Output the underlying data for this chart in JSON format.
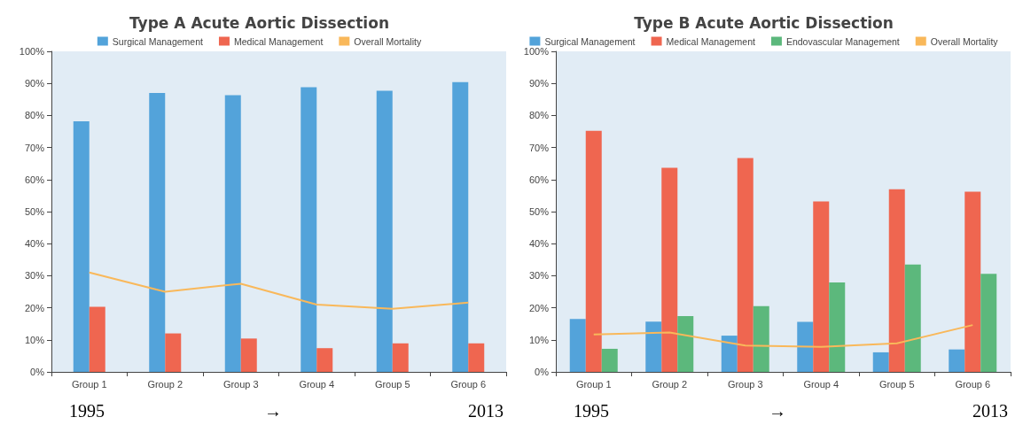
{
  "chart_data": [
    {
      "type": "bar",
      "title": "Type A Acute Aortic Dissection",
      "categories": [
        "Group 1",
        "Group 2",
        "Group 3",
        "Group 4",
        "Group 5",
        "Group 6"
      ],
      "series": [
        {
          "name": "Surgical Management",
          "color": "#53a3da",
          "values": [
            78.2,
            87,
            86.3,
            88.8,
            87.7,
            90.4
          ]
        },
        {
          "name": "Medical Management",
          "color": "#ef6650",
          "values": [
            20.3,
            12,
            10.4,
            7.4,
            8.9,
            8.9
          ]
        },
        {
          "name": "Overall Mortality",
          "type": "line",
          "color": "#f9b85a",
          "values": [
            31,
            25,
            27.5,
            21,
            19.7,
            21.6
          ]
        }
      ],
      "ylim": [
        0,
        100
      ],
      "yticks": [
        {
          "value": 0,
          "label": "0%"
        },
        {
          "value": 10,
          "label": "10%"
        },
        {
          "value": 20,
          "label": "20%"
        },
        {
          "value": 30,
          "label": "30%"
        },
        {
          "value": 40,
          "label": "40%"
        },
        {
          "value": 50,
          "label": "50%"
        },
        {
          "value": 60,
          "label": "60%"
        },
        {
          "value": 70,
          "label": "70%"
        },
        {
          "value": 80,
          "label": "80%"
        },
        {
          "value": 90,
          "label": "90%"
        },
        {
          "value": 100,
          "label": "100%"
        }
      ],
      "grid": false,
      "legend": "top",
      "marker": "none",
      "annotations": [
        "1995",
        "→",
        "2013"
      ]
    },
    {
      "type": "bar",
      "title": "Type B Acute Aortic Dissection",
      "categories": [
        "Group 1",
        "Group 2",
        "Group 3",
        "Group 4",
        "Group 5",
        "Group 6"
      ],
      "series": [
        {
          "name": "Surgical Management",
          "color": "#53a3da",
          "values": [
            16.5,
            15.7,
            11.3,
            15.6,
            6.1,
            7.0
          ]
        },
        {
          "name": "Medical Management",
          "color": "#ef6650",
          "values": [
            75.2,
            63.7,
            66.7,
            53.2,
            57.0,
            56.2
          ]
        },
        {
          "name": "Endovascular Management",
          "color": "#5cb87c",
          "values": [
            7.2,
            17.4,
            20.5,
            27.9,
            33.5,
            30.6
          ]
        },
        {
          "name": "Overall Mortality",
          "type": "line",
          "color": "#f9b85a",
          "values": [
            11.7,
            12.3,
            8.2,
            7.8,
            8.9,
            14.6
          ]
        }
      ],
      "ylim": [
        0,
        100
      ],
      "yticks": [
        {
          "value": 0,
          "label": "0%"
        },
        {
          "value": 10,
          "label": "10%"
        },
        {
          "value": 20,
          "label": "20%"
        },
        {
          "value": 30,
          "label": "30%"
        },
        {
          "value": 40,
          "label": "40%"
        },
        {
          "value": 50,
          "label": "50%"
        },
        {
          "value": 60,
          "label": "60%"
        },
        {
          "value": 70,
          "label": "70%"
        },
        {
          "value": 80,
          "label": "80%"
        },
        {
          "value": 90,
          "label": "90%"
        },
        {
          "value": 100,
          "label": "100%"
        }
      ],
      "grid": false,
      "legend": "top",
      "marker": "none",
      "annotations": [
        "1995",
        "→",
        "2013"
      ]
    }
  ]
}
